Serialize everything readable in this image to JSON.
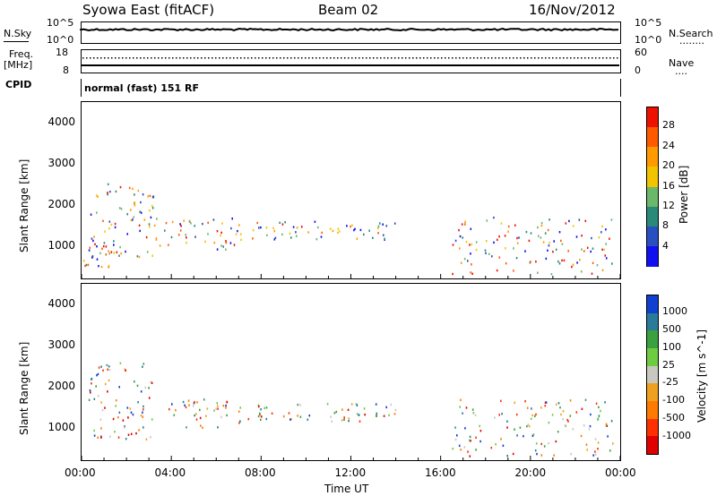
{
  "header": {
    "station": "Syowa East (fitACF)",
    "beam": "Beam 02",
    "date": "16/Nov/2012"
  },
  "left_labels": {
    "nsky": "N.Sky",
    "freq_top": "Freq.",
    "freq_unit": "[MHz]",
    "cpid": "CPID"
  },
  "right_labels": {
    "nsearch": "N.Search",
    "nave": "Nave",
    "dots": "........",
    "dots_short": "...."
  },
  "noise_axis": {
    "left_top": "10^5",
    "left_bottom": "10^0",
    "right_top": "10^5",
    "right_bottom": "10^0"
  },
  "freq_axis": {
    "left_top": "18",
    "left_bottom": "8",
    "right_top": "60",
    "right_bottom": "0"
  },
  "cpid_text": "normal (fast) 151 RF",
  "chart_data": [
    {
      "type": "heatmap",
      "title": "",
      "ylabel": "Slant Range [km]",
      "xlabel": "",
      "y_ticks": [
        "4000",
        "3000",
        "2000",
        "1000"
      ],
      "ylim": [
        180,
        4500
      ],
      "xlim": [
        0,
        24
      ],
      "colorbar": {
        "label": "Power [dB]",
        "ticks": [
          "28",
          "24",
          "20",
          "16",
          "12",
          "8",
          "4"
        ],
        "colors": [
          "#ee1100",
          "#ff5a00",
          "#ff9a00",
          "#f2c400",
          "#6bb86b",
          "#2a8a7a",
          "#2850c0",
          "#1010f0"
        ]
      },
      "regions": [
        {
          "t0": 0.3,
          "t1": 3.2,
          "r0": 700,
          "r1": 2600,
          "density": 0.55
        },
        {
          "t0": 3.2,
          "t1": 7.0,
          "r0": 900,
          "r1": 1700,
          "density": 0.6
        },
        {
          "t0": 7.0,
          "t1": 14.0,
          "r0": 1150,
          "r1": 1600,
          "density": 0.7
        },
        {
          "t0": 16.5,
          "t1": 23.8,
          "r0": 300,
          "r1": 1700,
          "density": 0.45
        },
        {
          "t0": 0.0,
          "t1": 1.5,
          "r0": 250,
          "r1": 900,
          "density": 0.6
        }
      ]
    },
    {
      "type": "heatmap",
      "title": "",
      "ylabel": "Slant Range [km]",
      "xlabel": "Time UT",
      "x_ticks": [
        "00:00",
        "04:00",
        "08:00",
        "12:00",
        "16:00",
        "20:00",
        "00:00"
      ],
      "y_ticks": [
        "4000",
        "3000",
        "2000",
        "1000"
      ],
      "ylim": [
        180,
        4500
      ],
      "xlim": [
        0,
        24
      ],
      "colorbar": {
        "label": "Velocity [m s^-1]",
        "ticks": [
          "1000",
          "500",
          "100",
          "25",
          "-25",
          "-100",
          "-500",
          "-1000"
        ],
        "colors": [
          "#1040d0",
          "#2a7a9a",
          "#3aa040",
          "#6dcc40",
          "#c8c8c0",
          "#f0a020",
          "#ff7a00",
          "#ff3000",
          "#e00000"
        ]
      },
      "regions": [
        {
          "t0": 0.3,
          "t1": 3.2,
          "r0": 700,
          "r1": 2600,
          "density": 0.55
        },
        {
          "t0": 3.8,
          "t1": 7.0,
          "r0": 1000,
          "r1": 1700,
          "density": 0.7
        },
        {
          "t0": 7.0,
          "t1": 14.0,
          "r0": 1150,
          "r1": 1600,
          "density": 0.7
        },
        {
          "t0": 16.5,
          "t1": 23.8,
          "r0": 300,
          "r1": 1700,
          "density": 0.45
        }
      ]
    }
  ]
}
